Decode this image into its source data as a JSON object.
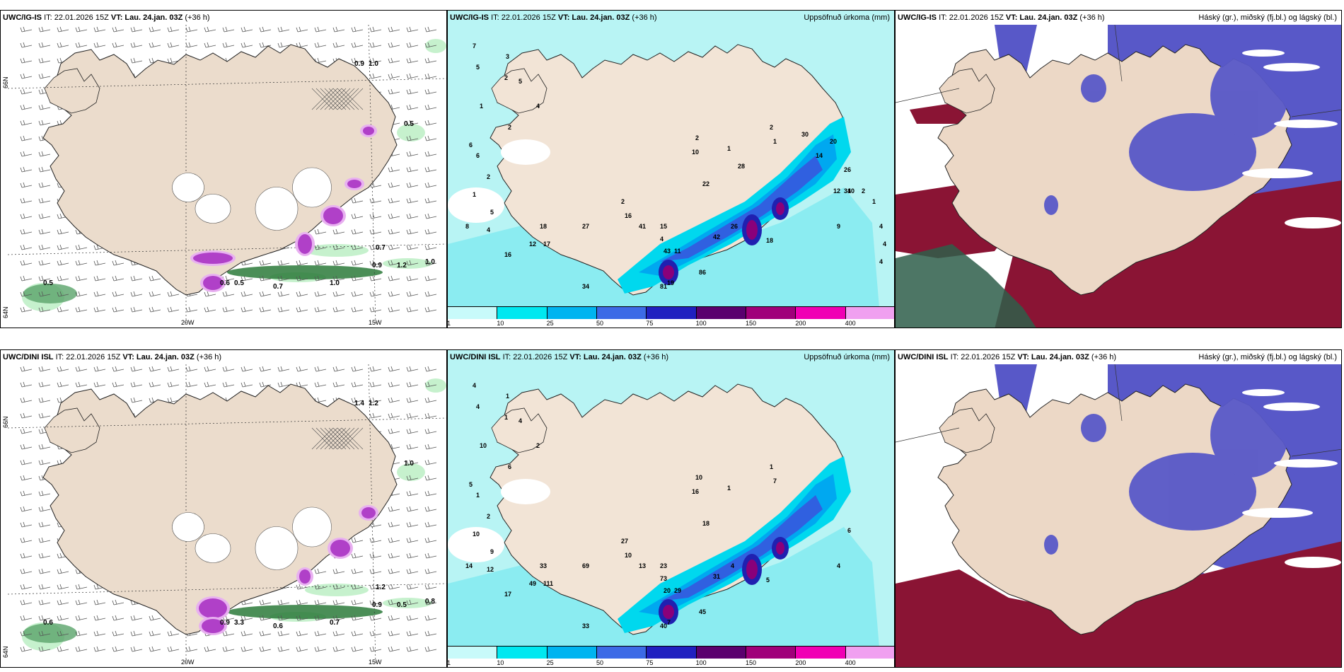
{
  "rows": [
    {
      "model": "UWC/IG-IS",
      "it": "IT: 22.01.2026 15Z",
      "vt_label": "VT:",
      "vt": "Lau. 24.jan. 03Z",
      "lead": "(+36 h)",
      "precip_values": [
        "7",
        "5",
        "3",
        "2",
        "5",
        "1",
        "4",
        "2",
        "6",
        "6",
        "2",
        "1",
        "5",
        "4",
        "8",
        "16",
        "8",
        "15",
        "10",
        "12",
        "18",
        "17",
        "27",
        "4",
        "2",
        "16",
        "15",
        "43",
        "41",
        "11",
        "81",
        "42",
        "86",
        "34",
        "18",
        "19",
        "26",
        "9",
        "10",
        "1",
        "2",
        "1",
        "2",
        "10",
        "22",
        "28",
        "30",
        "14",
        "20",
        "26",
        "34",
        "12",
        "2",
        "1",
        "4",
        "4",
        "4"
      ],
      "mslp_values": [
        "0.9",
        "1.0",
        "0.5",
        "0.7",
        "0.9",
        "1.2",
        "1.0",
        "1.0",
        "0.5",
        "0.6",
        "0.7",
        "0.5"
      ]
    },
    {
      "model": "UWC/DINI ISL",
      "it": "IT: 22.01.2026 15Z",
      "vt_label": "VT:",
      "vt": "Lau. 24.jan. 03Z",
      "lead": "(+36 h)",
      "precip_values": [
        "4",
        "4",
        "1",
        "1",
        "4",
        "10",
        "2",
        "6",
        "5",
        "1",
        "2",
        "10",
        "9",
        "12",
        "14",
        "17",
        "27",
        "11",
        "50",
        "49",
        "33",
        "111",
        "69",
        "73",
        "27",
        "10",
        "23",
        "20",
        "13",
        "29",
        "40",
        "31",
        "45",
        "33",
        "5",
        "7",
        "4",
        "4",
        "6",
        "7",
        "1",
        "1",
        "10",
        "16",
        "18"
      ],
      "mslp_values": [
        "1.4",
        "1.2",
        "1.0",
        "1.2",
        "0.9",
        "0.5",
        "0.8",
        "0.7",
        "0.6",
        "0.9",
        "0.6",
        "3.3"
      ]
    }
  ],
  "titles": {
    "precip": "Uppsöfnuð úrkoma (mm)",
    "cloud": "Háský (gr.), miðský (fj.bl.) og lágský (bl.)"
  },
  "colorbar": {
    "labels": [
      "1",
      "10",
      "25",
      "50",
      "75",
      "100",
      "150",
      "200",
      "400"
    ],
    "colors": [
      "#c8fafa",
      "#00e8f0",
      "#00b4f0",
      "#3c6ae6",
      "#2020c0",
      "#5a006e",
      "#a0007a",
      "#f000b4",
      "#f0a0f0"
    ]
  },
  "axes": {
    "lon_labels": [
      "20W",
      "15W"
    ],
    "lat_labels": [
      "66N",
      "64N"
    ]
  },
  "colors": {
    "land": "#ede0d0",
    "sea_precip": "#b8f4f4",
    "high_cloud": "#9a9a9a",
    "mid_cloud": "#5858c8",
    "low_cloud": "#8a1434"
  }
}
